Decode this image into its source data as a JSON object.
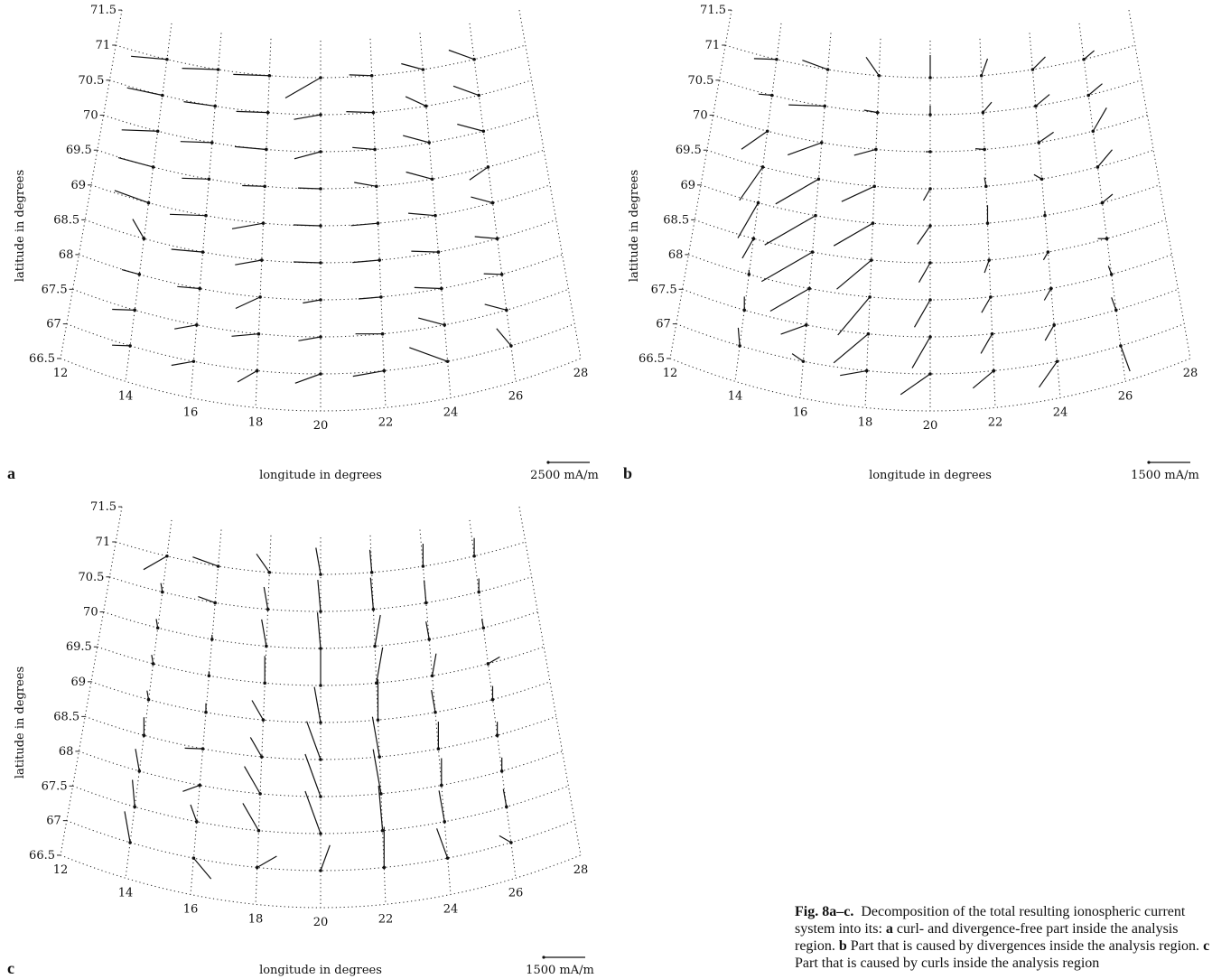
{
  "chart_data": [
    {
      "type": "vector-field",
      "panel_label": "a",
      "xlabel": "longitude in degrees",
      "ylabel": "latitude in degrees",
      "x_ticks": [
        "12",
        "14",
        "16",
        "18",
        "20",
        "22",
        "24",
        "26",
        "28"
      ],
      "y_ticks": [
        "71.5",
        "71",
        "70.5",
        "70",
        "69.5",
        "69",
        "68.5",
        "68",
        "67.5",
        "67",
        "66.5"
      ],
      "scale_label": "2500 mA/m",
      "longitudes": [
        14,
        16,
        18,
        20,
        22,
        24,
        26
      ],
      "latitudes": [
        71,
        70.5,
        70,
        69.5,
        69,
        68.5,
        68,
        67.5,
        67
      ],
      "vectors_deg": [
        [
          175,
          178,
          178,
          210,
          178,
          165,
          160
        ],
        [
          168,
          172,
          178,
          190,
          178,
          155,
          160
        ],
        [
          178,
          178,
          175,
          195,
          175,
          165,
          165
        ],
        [
          165,
          178,
          178,
          178,
          170,
          165,
          215
        ],
        [
          160,
          178,
          190,
          178,
          185,
          175,
          165
        ],
        [
          120,
          175,
          190,
          178,
          185,
          178,
          175
        ],
        [
          165,
          175,
          205,
          190,
          185,
          178,
          178
        ],
        [
          178,
          190,
          185,
          190,
          180,
          165,
          165
        ],
        [
          178,
          190,
          210,
          200,
          190,
          160,
          130
        ]
      ],
      "lengths": [
        [
          0.8,
          0.8,
          0.8,
          0.9,
          0.5,
          0.5,
          0.6
        ],
        [
          0.8,
          0.7,
          0.7,
          0.6,
          0.6,
          0.5,
          0.6
        ],
        [
          0.8,
          0.7,
          0.7,
          0.6,
          0.5,
          0.6,
          0.6
        ],
        [
          0.8,
          0.6,
          0.5,
          0.5,
          0.5,
          0.6,
          0.5
        ],
        [
          0.8,
          0.8,
          0.7,
          0.6,
          0.6,
          0.6,
          0.5
        ],
        [
          0.5,
          0.7,
          0.6,
          0.6,
          0.6,
          0.6,
          0.5
        ],
        [
          0.4,
          0.5,
          0.6,
          0.4,
          0.5,
          0.6,
          0.4
        ],
        [
          0.5,
          0.5,
          0.6,
          0.5,
          0.6,
          0.6,
          0.5
        ],
        [
          0.4,
          0.5,
          0.5,
          0.6,
          0.7,
          0.9,
          0.5
        ]
      ]
    },
    {
      "type": "vector-field",
      "panel_label": "b",
      "xlabel": "longitude in degrees",
      "ylabel": "latitude in degrees",
      "x_ticks": [
        "12",
        "14",
        "16",
        "18",
        "20",
        "22",
        "24",
        "26",
        "28"
      ],
      "y_ticks": [
        "71.5",
        "71",
        "70.5",
        "70",
        "69.5",
        "69",
        "68.5",
        "68",
        "67.5",
        "67",
        "66.5"
      ],
      "scale_label": "1500 mA/m",
      "longitudes": [
        14,
        16,
        18,
        20,
        22,
        24,
        26
      ],
      "latitudes": [
        71,
        70.5,
        70,
        69.5,
        69,
        68.5,
        68,
        67.5,
        67
      ],
      "vectors_deg": [
        [
          178,
          160,
          125,
          90,
          70,
          45,
          40
        ],
        [
          175,
          178,
          170,
          90,
          50,
          40,
          40
        ],
        [
          215,
          200,
          195,
          180,
          175,
          35,
          60
        ],
        [
          235,
          210,
          205,
          240,
          100,
          150,
          50
        ],
        [
          240,
          210,
          210,
          235,
          90,
          90,
          40
        ],
        [
          240,
          210,
          220,
          240,
          250,
          240,
          180
        ],
        [
          90,
          210,
          230,
          240,
          240,
          240,
          110
        ],
        [
          90,
          200,
          220,
          240,
          240,
          240,
          110
        ],
        [
          95,
          145,
          190,
          215,
          220,
          235,
          290
        ]
      ],
      "lengths": [
        [
          0.5,
          0.6,
          0.5,
          0.5,
          0.4,
          0.4,
          0.3
        ],
        [
          0.3,
          0.8,
          0.3,
          0.2,
          0.3,
          0.4,
          0.4
        ],
        [
          0.7,
          0.8,
          0.5,
          0.1,
          0.2,
          0.4,
          0.6
        ],
        [
          0.9,
          1.1,
          0.8,
          0.3,
          0.2,
          0.2,
          0.5
        ],
        [
          0.9,
          1.3,
          1.0,
          0.5,
          0.4,
          0.1,
          0.3
        ],
        [
          0.5,
          1.3,
          1.0,
          0.5,
          0.3,
          0.2,
          0.2
        ],
        [
          0.1,
          1.0,
          1.1,
          0.7,
          0.4,
          0.3,
          0.2
        ],
        [
          0.3,
          0.6,
          1.0,
          0.8,
          0.5,
          0.4,
          0.3
        ],
        [
          0.4,
          0.3,
          0.6,
          0.8,
          0.6,
          0.7,
          0.6
        ]
      ]
    },
    {
      "type": "vector-field",
      "panel_label": "c",
      "xlabel": "longitude in degrees",
      "ylabel": "latitude in degrees",
      "x_ticks": [
        "12",
        "14",
        "16",
        "18",
        "20",
        "22",
        "24",
        "26",
        "28"
      ],
      "y_ticks": [
        "71.5",
        "71",
        "70.5",
        "70",
        "69.5",
        "69",
        "68.5",
        "68",
        "67.5",
        "67",
        "66.5"
      ],
      "scale_label": "1500 mA/m",
      "longitudes": [
        14,
        16,
        18,
        20,
        22,
        24,
        26
      ],
      "latitudes": [
        71,
        70.5,
        70,
        69.5,
        69,
        68.5,
        68,
        67.5,
        67
      ],
      "vectors_deg": [
        [
          210,
          160,
          125,
          100,
          95,
          90,
          90
        ],
        [
          100,
          160,
          100,
          95,
          95,
          95,
          90
        ],
        [
          100,
          90,
          100,
          95,
          80,
          100,
          100
        ],
        [
          100,
          90,
          90,
          90,
          80,
          80,
          30
        ],
        [
          100,
          90,
          120,
          100,
          90,
          100,
          90
        ],
        [
          90,
          178,
          120,
          110,
          100,
          90,
          90
        ],
        [
          100,
          200,
          120,
          110,
          100,
          90,
          90
        ],
        [
          95,
          110,
          120,
          110,
          95,
          100,
          100
        ],
        [
          100,
          310,
          30,
          70,
          90,
          110,
          150
        ]
      ],
      "lengths": [
        [
          0.6,
          0.6,
          0.5,
          0.6,
          0.5,
          0.5,
          0.4
        ],
        [
          0.2,
          0.4,
          0.5,
          0.7,
          0.7,
          0.5,
          0.3
        ],
        [
          0.2,
          0.1,
          0.6,
          0.8,
          0.7,
          0.4,
          0.2
        ],
        [
          0.2,
          0.1,
          0.6,
          0.8,
          0.8,
          0.5,
          0.3
        ],
        [
          0.2,
          0.2,
          0.5,
          0.8,
          0.9,
          0.5,
          0.3
        ],
        [
          0.4,
          0.4,
          0.5,
          0.9,
          0.9,
          0.6,
          0.3
        ],
        [
          0.5,
          0.4,
          0.7,
          1.0,
          1.0,
          0.6,
          0.3
        ],
        [
          0.6,
          0.4,
          0.7,
          1.0,
          1.0,
          0.7,
          0.4
        ],
        [
          0.7,
          0.6,
          0.5,
          0.6,
          0.9,
          0.7,
          0.3
        ]
      ]
    }
  ],
  "caption": {
    "prefix": "Fig. 8a–c.",
    "intro": "Decomposition of the total resulting ionospheric current system into its: ",
    "a_letter": "a",
    "a_text": " curl- and divergence-free part inside the analysis region. ",
    "b_letter": "b",
    "b_text": " Part that is caused by divergences inside the analysis region. ",
    "c_letter": "c",
    "c_text": " Part that is caused by curls inside the analysis region"
  }
}
